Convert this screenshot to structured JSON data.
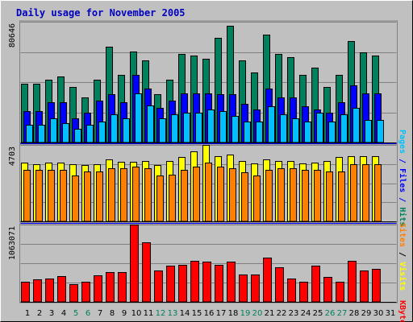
{
  "chart_data": {
    "type": "bar",
    "title": "Daily usage for November 2005",
    "categories": [
      "1",
      "2",
      "3",
      "4",
      "5",
      "6",
      "7",
      "8",
      "9",
      "10",
      "11",
      "12",
      "13",
      "14",
      "15",
      "16",
      "17",
      "18",
      "19",
      "20",
      "21",
      "22",
      "23",
      "24",
      "25",
      "26",
      "27",
      "28",
      "29",
      "30",
      "31"
    ],
    "weekend_days": [
      "5",
      "6",
      "12",
      "13",
      "19",
      "20",
      "26",
      "27"
    ],
    "colors": {
      "background": "#C0C0C0",
      "title": "#0000C0",
      "axis_text": "#000000",
      "weekday_tick": "#000000",
      "weekend_tick": "#00805C",
      "hits": "#00805C",
      "files": "#0000FF",
      "pages": "#00C0FF",
      "visits": "#FFFF00",
      "sites": "#FF8000",
      "kbytes": "#FF0000",
      "separator": "#0000FF"
    },
    "panels": [
      {
        "name": "hits-files-pages",
        "ymax_label": "80646",
        "ymax": 80646,
        "ylim": [
          0,
          80646
        ],
        "right_label": [
          {
            "text": "Pages",
            "color": "#00C0FF"
          },
          {
            "text": " / ",
            "color": "#0000FF"
          },
          {
            "text": "Files",
            "color": "#0000FF"
          },
          {
            "text": " / ",
            "color": "#0000FF"
          },
          {
            "text": "Hits",
            "color": "#00805C"
          }
        ],
        "series": [
          {
            "name": "Hits",
            "color": "#00805C",
            "values": [
              39000,
              39000,
              42000,
              44000,
              37000,
              30000,
              42000,
              64000,
              45000,
              61000,
              55000,
              32000,
              42000,
              59000,
              58000,
              56000,
              70000,
              78000,
              55000,
              47000,
              72000,
              59000,
              57000,
              45000,
              50000,
              37000,
              45000,
              68000,
              60000,
              58000,
              0
            ]
          },
          {
            "name": "Files",
            "color": "#0000FF",
            "values": [
              21000,
              21000,
              27000,
              27000,
              16000,
              20000,
              28000,
              32000,
              27000,
              45000,
              36000,
              23000,
              28000,
              33000,
              33000,
              33000,
              32000,
              32000,
              26000,
              22000,
              36000,
              30000,
              30000,
              24000,
              22000,
              20000,
              27000,
              38000,
              33000,
              33000,
              0
            ]
          },
          {
            "name": "Pages",
            "color": "#00C0FF",
            "values": [
              12000,
              12000,
              16000,
              13000,
              9000,
              12000,
              14000,
              19000,
              16000,
              33000,
              25000,
              16000,
              19000,
              20000,
              20000,
              22000,
              21000,
              18000,
              14000,
              14000,
              24000,
              19000,
              16000,
              14000,
              20000,
              14000,
              19000,
              23000,
              15000,
              15000,
              0
            ]
          }
        ]
      },
      {
        "name": "visits-sites",
        "ymax_label": "4703",
        "ymax": 4703,
        "ylim": [
          0,
          4703
        ],
        "right_label": [
          {
            "text": "Sites",
            "color": "#FF8000"
          },
          {
            "text": " / ",
            "color": "#000000"
          },
          {
            "text": "Visits",
            "color": "#FFFF00"
          }
        ],
        "series": [
          {
            "name": "Visits",
            "color": "#FFFF00",
            "values": [
              3620,
              3530,
              3590,
              3620,
              3500,
              3460,
              3500,
              3810,
              3670,
              3640,
              3710,
              3450,
              3720,
              3940,
              4330,
              4700,
              4020,
              4090,
              3720,
              3560,
              3790,
              3700,
              3720,
              3580,
              3620,
              3720,
              3940,
              4020,
              4020,
              4020,
              0
            ]
          },
          {
            "name": "Sites",
            "color": "#FF8000",
            "values": [
              3160,
              3160,
              3160,
              3160,
              2820,
              3050,
              3050,
              3270,
              3270,
              3390,
              3270,
              2820,
              2860,
              3160,
              3390,
              3610,
              3380,
              3270,
              3000,
              2820,
              3160,
              3270,
              3270,
              3160,
              3160,
              3050,
              3050,
              3500,
              3500,
              3500,
              0
            ]
          }
        ]
      },
      {
        "name": "kbytes",
        "ymax_label": "1063071",
        "ymax": 1063071,
        "ylim": [
          0,
          1063071
        ],
        "right_label": [
          {
            "text": "KBytes",
            "color": "#FF0000"
          }
        ],
        "series": [
          {
            "name": "KBytes",
            "color": "#FF0000",
            "values": [
              280000,
              310000,
              320000,
              355000,
              240000,
              280000,
              365000,
              410000,
              410000,
              1063071,
              822000,
              430000,
              500000,
              510000,
              565000,
              550000,
              505000,
              555000,
              375000,
              380000,
              605000,
              475000,
              320000,
              275000,
              500000,
              340000,
              280000,
              565000,
              430000,
              455000,
              0
            ]
          }
        ]
      }
    ]
  }
}
